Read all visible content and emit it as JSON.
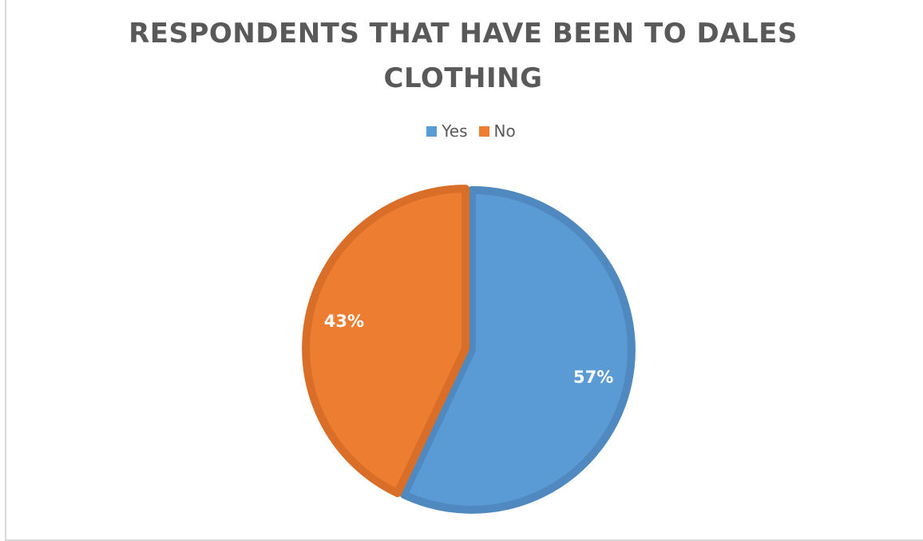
{
  "chart_data": {
    "type": "pie",
    "title": "RESPONDENTS THAT HAVE BEEN TO DALES CLOTHING",
    "title_lines": [
      "RESPONDENTS THAT HAVE BEEN TO DALES",
      "CLOTHING"
    ],
    "legend_position": "top",
    "slices": [
      {
        "label": "Yes",
        "value": 57,
        "display": "57%",
        "color": "#5B9BD5",
        "border": "#4F89C0"
      },
      {
        "label": "No",
        "value": 43,
        "display": "43%",
        "color": "#ED7D31",
        "border": "#D96E28"
      }
    ]
  }
}
